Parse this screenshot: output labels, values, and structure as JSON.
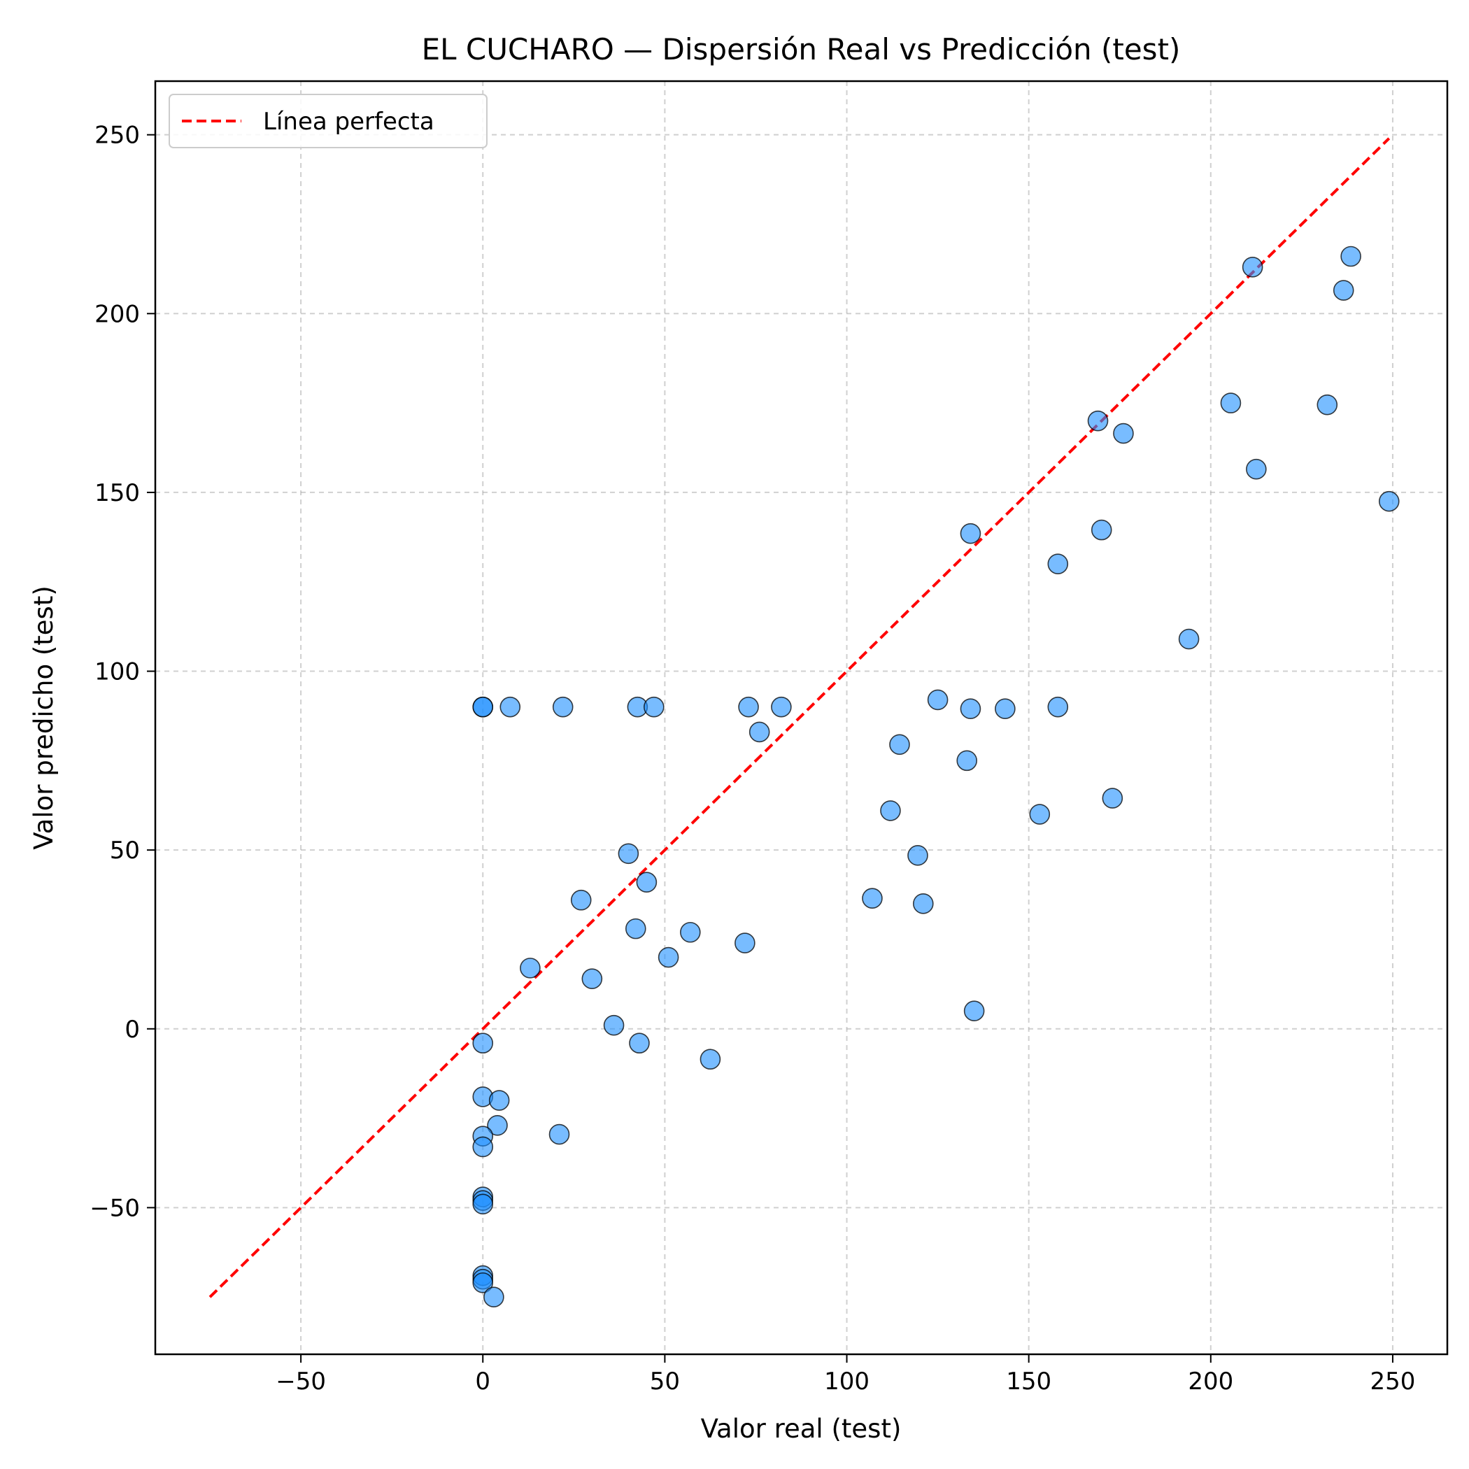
{
  "chart_data": {
    "type": "scatter",
    "title": "EL CUCHARO — Dispersión Real vs Predicción (test)",
    "xlabel": "Valor real (test)",
    "ylabel": "Valor predicho (test)",
    "xlim": [
      -90,
      265
    ],
    "ylim": [
      -91,
      265
    ],
    "xticks": [
      -50,
      0,
      50,
      100,
      150,
      200,
      250
    ],
    "yticks": [
      -50,
      0,
      50,
      100,
      150,
      200,
      250
    ],
    "xtick_labels": [
      "−50",
      "0",
      "50",
      "100",
      "150",
      "200",
      "250"
    ],
    "ytick_labels": [
      "−50",
      "0",
      "50",
      "100",
      "150",
      "200",
      "250"
    ],
    "grid": true,
    "legend": {
      "position": "top-left",
      "entries": [
        "Línea perfecta"
      ]
    },
    "colors": {
      "points": "#1e90ff",
      "line": "#ff0000"
    },
    "reference_line": {
      "name": "Línea perfecta",
      "x": [
        -75,
        249
      ],
      "y": [
        -75,
        249
      ]
    },
    "points": [
      [
        0,
        90
      ],
      [
        0,
        90
      ],
      [
        7.5,
        90
      ],
      [
        22,
        90
      ],
      [
        42.5,
        90
      ],
      [
        47,
        90
      ],
      [
        73,
        90
      ],
      [
        82,
        90
      ],
      [
        76,
        83
      ],
      [
        40,
        49
      ],
      [
        45,
        41
      ],
      [
        27,
        36
      ],
      [
        42,
        28
      ],
      [
        57,
        27
      ],
      [
        51,
        20
      ],
      [
        72,
        24
      ],
      [
        13,
        17
      ],
      [
        30,
        14
      ],
      [
        36,
        1
      ],
      [
        43,
        -4
      ],
      [
        62.5,
        -8.5
      ],
      [
        0,
        -4
      ],
      [
        0,
        -19
      ],
      [
        4.5,
        -20
      ],
      [
        4,
        -27
      ],
      [
        21,
        -29.5
      ],
      [
        0,
        -30
      ],
      [
        0,
        -33
      ],
      [
        0,
        -47
      ],
      [
        0,
        -48
      ],
      [
        0,
        -49
      ],
      [
        0,
        -69
      ],
      [
        0,
        -70
      ],
      [
        0,
        -71
      ],
      [
        3,
        -75
      ],
      [
        107,
        36.5
      ],
      [
        112,
        61
      ],
      [
        114.5,
        79.5
      ],
      [
        119.5,
        48.5
      ],
      [
        121,
        35
      ],
      [
        125,
        92
      ],
      [
        133,
        75
      ],
      [
        134,
        89.5
      ],
      [
        143.5,
        89.5
      ],
      [
        134,
        138.5
      ],
      [
        135,
        5
      ],
      [
        153,
        60
      ],
      [
        158,
        130
      ],
      [
        158,
        90
      ],
      [
        169,
        170
      ],
      [
        170,
        139.5
      ],
      [
        173,
        64.5
      ],
      [
        176,
        166.5
      ],
      [
        194,
        109
      ],
      [
        205.5,
        175
      ],
      [
        211.5,
        213
      ],
      [
        212.5,
        156.5
      ],
      [
        232,
        174.5
      ],
      [
        236.5,
        206.5
      ],
      [
        238.5,
        216
      ],
      [
        249,
        147.5
      ]
    ]
  }
}
